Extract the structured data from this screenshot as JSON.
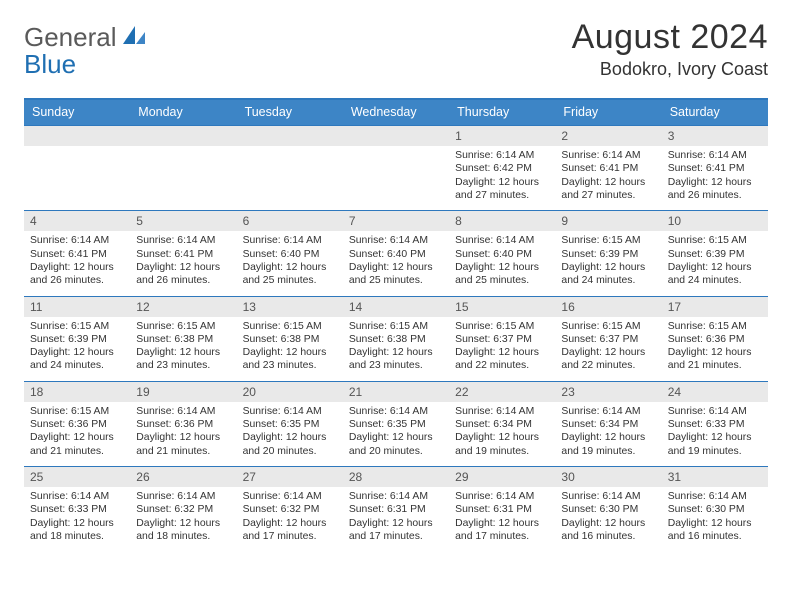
{
  "logo": {
    "text1": "General",
    "text2": "Blue"
  },
  "title": "August 2024",
  "location": "Bodokro, Ivory Coast",
  "colors": {
    "header_bg": "#3d85c6",
    "header_text": "#ffffff",
    "rule": "#2e78bd",
    "day_head_bg": "#e9e9e9",
    "day_head_text": "#555555",
    "body_text": "#333333",
    "logo_gray": "#5a5a5a",
    "logo_blue": "#1f6fb2",
    "page_bg": "#ffffff"
  },
  "dow": [
    "Sunday",
    "Monday",
    "Tuesday",
    "Wednesday",
    "Thursday",
    "Friday",
    "Saturday"
  ],
  "weeks": [
    [
      {
        "n": "",
        "sr": "",
        "ss": "",
        "dl": ""
      },
      {
        "n": "",
        "sr": "",
        "ss": "",
        "dl": ""
      },
      {
        "n": "",
        "sr": "",
        "ss": "",
        "dl": ""
      },
      {
        "n": "",
        "sr": "",
        "ss": "",
        "dl": ""
      },
      {
        "n": "1",
        "sr": "Sunrise: 6:14 AM",
        "ss": "Sunset: 6:42 PM",
        "dl": "Daylight: 12 hours and 27 minutes."
      },
      {
        "n": "2",
        "sr": "Sunrise: 6:14 AM",
        "ss": "Sunset: 6:41 PM",
        "dl": "Daylight: 12 hours and 27 minutes."
      },
      {
        "n": "3",
        "sr": "Sunrise: 6:14 AM",
        "ss": "Sunset: 6:41 PM",
        "dl": "Daylight: 12 hours and 26 minutes."
      }
    ],
    [
      {
        "n": "4",
        "sr": "Sunrise: 6:14 AM",
        "ss": "Sunset: 6:41 PM",
        "dl": "Daylight: 12 hours and 26 minutes."
      },
      {
        "n": "5",
        "sr": "Sunrise: 6:14 AM",
        "ss": "Sunset: 6:41 PM",
        "dl": "Daylight: 12 hours and 26 minutes."
      },
      {
        "n": "6",
        "sr": "Sunrise: 6:14 AM",
        "ss": "Sunset: 6:40 PM",
        "dl": "Daylight: 12 hours and 25 minutes."
      },
      {
        "n": "7",
        "sr": "Sunrise: 6:14 AM",
        "ss": "Sunset: 6:40 PM",
        "dl": "Daylight: 12 hours and 25 minutes."
      },
      {
        "n": "8",
        "sr": "Sunrise: 6:14 AM",
        "ss": "Sunset: 6:40 PM",
        "dl": "Daylight: 12 hours and 25 minutes."
      },
      {
        "n": "9",
        "sr": "Sunrise: 6:15 AM",
        "ss": "Sunset: 6:39 PM",
        "dl": "Daylight: 12 hours and 24 minutes."
      },
      {
        "n": "10",
        "sr": "Sunrise: 6:15 AM",
        "ss": "Sunset: 6:39 PM",
        "dl": "Daylight: 12 hours and 24 minutes."
      }
    ],
    [
      {
        "n": "11",
        "sr": "Sunrise: 6:15 AM",
        "ss": "Sunset: 6:39 PM",
        "dl": "Daylight: 12 hours and 24 minutes."
      },
      {
        "n": "12",
        "sr": "Sunrise: 6:15 AM",
        "ss": "Sunset: 6:38 PM",
        "dl": "Daylight: 12 hours and 23 minutes."
      },
      {
        "n": "13",
        "sr": "Sunrise: 6:15 AM",
        "ss": "Sunset: 6:38 PM",
        "dl": "Daylight: 12 hours and 23 minutes."
      },
      {
        "n": "14",
        "sr": "Sunrise: 6:15 AM",
        "ss": "Sunset: 6:38 PM",
        "dl": "Daylight: 12 hours and 23 minutes."
      },
      {
        "n": "15",
        "sr": "Sunrise: 6:15 AM",
        "ss": "Sunset: 6:37 PM",
        "dl": "Daylight: 12 hours and 22 minutes."
      },
      {
        "n": "16",
        "sr": "Sunrise: 6:15 AM",
        "ss": "Sunset: 6:37 PM",
        "dl": "Daylight: 12 hours and 22 minutes."
      },
      {
        "n": "17",
        "sr": "Sunrise: 6:15 AM",
        "ss": "Sunset: 6:36 PM",
        "dl": "Daylight: 12 hours and 21 minutes."
      }
    ],
    [
      {
        "n": "18",
        "sr": "Sunrise: 6:15 AM",
        "ss": "Sunset: 6:36 PM",
        "dl": "Daylight: 12 hours and 21 minutes."
      },
      {
        "n": "19",
        "sr": "Sunrise: 6:14 AM",
        "ss": "Sunset: 6:36 PM",
        "dl": "Daylight: 12 hours and 21 minutes."
      },
      {
        "n": "20",
        "sr": "Sunrise: 6:14 AM",
        "ss": "Sunset: 6:35 PM",
        "dl": "Daylight: 12 hours and 20 minutes."
      },
      {
        "n": "21",
        "sr": "Sunrise: 6:14 AM",
        "ss": "Sunset: 6:35 PM",
        "dl": "Daylight: 12 hours and 20 minutes."
      },
      {
        "n": "22",
        "sr": "Sunrise: 6:14 AM",
        "ss": "Sunset: 6:34 PM",
        "dl": "Daylight: 12 hours and 19 minutes."
      },
      {
        "n": "23",
        "sr": "Sunrise: 6:14 AM",
        "ss": "Sunset: 6:34 PM",
        "dl": "Daylight: 12 hours and 19 minutes."
      },
      {
        "n": "24",
        "sr": "Sunrise: 6:14 AM",
        "ss": "Sunset: 6:33 PM",
        "dl": "Daylight: 12 hours and 19 minutes."
      }
    ],
    [
      {
        "n": "25",
        "sr": "Sunrise: 6:14 AM",
        "ss": "Sunset: 6:33 PM",
        "dl": "Daylight: 12 hours and 18 minutes."
      },
      {
        "n": "26",
        "sr": "Sunrise: 6:14 AM",
        "ss": "Sunset: 6:32 PM",
        "dl": "Daylight: 12 hours and 18 minutes."
      },
      {
        "n": "27",
        "sr": "Sunrise: 6:14 AM",
        "ss": "Sunset: 6:32 PM",
        "dl": "Daylight: 12 hours and 17 minutes."
      },
      {
        "n": "28",
        "sr": "Sunrise: 6:14 AM",
        "ss": "Sunset: 6:31 PM",
        "dl": "Daylight: 12 hours and 17 minutes."
      },
      {
        "n": "29",
        "sr": "Sunrise: 6:14 AM",
        "ss": "Sunset: 6:31 PM",
        "dl": "Daylight: 12 hours and 17 minutes."
      },
      {
        "n": "30",
        "sr": "Sunrise: 6:14 AM",
        "ss": "Sunset: 6:30 PM",
        "dl": "Daylight: 12 hours and 16 minutes."
      },
      {
        "n": "31",
        "sr": "Sunrise: 6:14 AM",
        "ss": "Sunset: 6:30 PM",
        "dl": "Daylight: 12 hours and 16 minutes."
      }
    ]
  ]
}
